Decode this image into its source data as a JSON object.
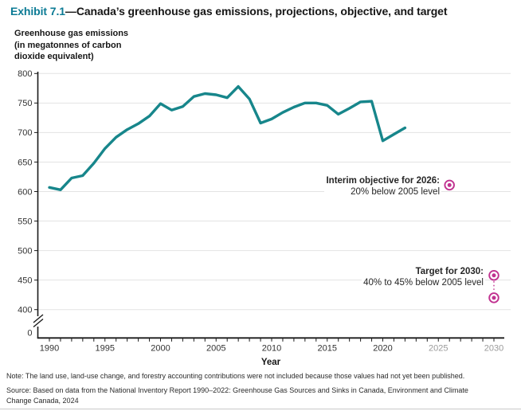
{
  "title": {
    "exhibit_label": "Exhibit 7.1",
    "title_rest": "—Canada’s greenhouse gas emissions, projections, objective, and target"
  },
  "y_axis_title_lines": [
    "Greenhouse gas emissions",
    "(in megatonnes of carbon",
    "dioxide equivalent)"
  ],
  "x_axis_title": "Year",
  "annotations": {
    "interim": {
      "title": "Interim objective for 2026:",
      "subtitle": "20% below 2005 level"
    },
    "target": {
      "title": "Target for 2030:",
      "subtitle": "40% to 45% below 2005 level"
    }
  },
  "note": "Note: The land use, land-use change, and forestry accounting contributions were not included because those values had not yet been published.",
  "source": "Source: Based on data from the National Inventory Report 1990–2022: Greenhouse Gas Sources and Sinks in Canada, Environment and Climate Change Canada, 2024",
  "colors": {
    "line": "#17868b",
    "title_accent": "#0c7b95",
    "marker": "#c13290",
    "grid": "#e3e3e3",
    "axis": "#1a1a1a",
    "tick_label": "#333333",
    "future_tick_label": "#9b9b9b"
  },
  "chart_data": {
    "type": "line",
    "title": "Canada’s greenhouse gas emissions, projections, objective, and target",
    "xlabel": "Year",
    "ylabel": "Greenhouse gas emissions (in megatonnes of carbon dioxide equivalent)",
    "x": [
      1990,
      1991,
      1992,
      1993,
      1994,
      1995,
      1996,
      1997,
      1998,
      1999,
      2000,
      2001,
      2002,
      2003,
      2004,
      2005,
      2006,
      2007,
      2008,
      2009,
      2010,
      2011,
      2012,
      2013,
      2014,
      2015,
      2016,
      2017,
      2018,
      2019,
      2020,
      2021,
      2022
    ],
    "values": [
      607,
      603,
      623,
      627,
      648,
      673,
      692,
      705,
      715,
      728,
      749,
      738,
      744,
      761,
      766,
      764,
      759,
      778,
      757,
      716,
      723,
      734,
      743,
      750,
      750,
      746,
      731,
      741,
      752,
      753,
      686,
      697,
      708
    ],
    "series_name": "Greenhouse gas emissions (Mt CO2 eq)",
    "ylim": [
      400,
      800
    ],
    "yticks": [
      800,
      750,
      700,
      650,
      600,
      550,
      500,
      450,
      400
    ],
    "y_axis_break_to_zero": true,
    "zero_tick_label": "0",
    "xlim": [
      1990,
      2030
    ],
    "xticks": [
      1990,
      1995,
      2000,
      2005,
      2010,
      2015,
      2020,
      2025,
      2030
    ],
    "x_minor_tick_every": 1,
    "future_labels_from": 2025,
    "grid": true,
    "markers": {
      "interim_objective": {
        "year": 2026,
        "value": 611
      },
      "target_2030": {
        "year": 2030,
        "value_upper": 458,
        "value_lower": 420
      }
    }
  }
}
